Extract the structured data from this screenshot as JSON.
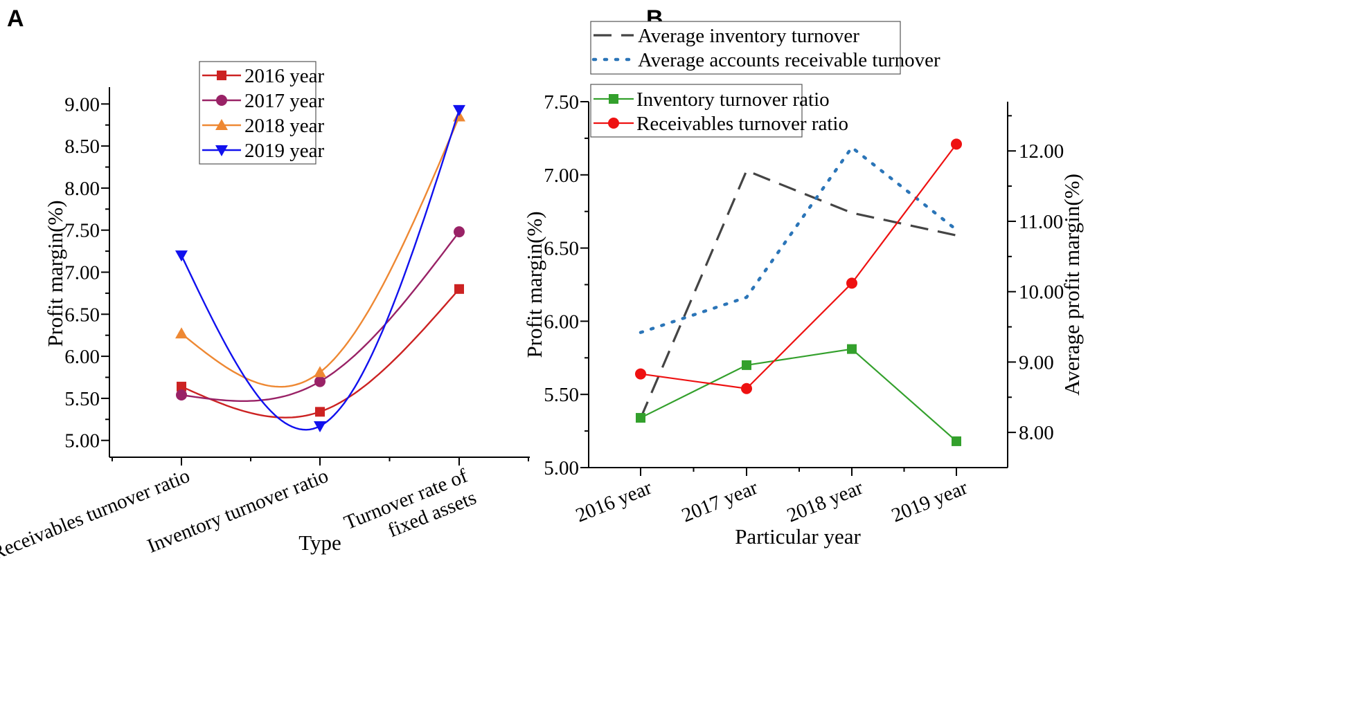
{
  "figure": {
    "panel_a_letter": "A",
    "panel_b_letter": "B"
  },
  "chart_data": [
    {
      "panel": "A",
      "type": "line",
      "smooth": true,
      "xlabel": "Type",
      "ylabel": "Profit margin(%)",
      "categories": [
        "Receivables turnover ratio",
        "Inventory turnover ratio",
        "Turnover rate of fixed assets"
      ],
      "category_lines": [
        [
          "Receivables turnover ratio"
        ],
        [
          "Inventory turnover ratio"
        ],
        [
          "Turnover rate of",
          "fixed assets"
        ]
      ],
      "ylim": [
        4.8,
        9.2
      ],
      "yticks": [
        5.0,
        5.5,
        6.0,
        6.5,
        7.0,
        7.5,
        8.0,
        8.5,
        9.0
      ],
      "ytick_labels": [
        "5.00",
        "5.50",
        "6.00",
        "6.50",
        "7.00",
        "7.50",
        "8.00",
        "8.50",
        "9.00"
      ],
      "legend_position": "top-center",
      "series": [
        {
          "name": "2016 year",
          "color": "#cc2222",
          "marker": "square",
          "values": [
            5.64,
            5.34,
            6.8
          ]
        },
        {
          "name": "2017 year",
          "color": "#992266",
          "marker": "circle",
          "values": [
            5.54,
            5.7,
            7.48
          ]
        },
        {
          "name": "2018 year",
          "color": "#ee8833",
          "marker": "triangle-up",
          "values": [
            6.27,
            5.81,
            8.85
          ]
        },
        {
          "name": "2019 year",
          "color": "#1111ee",
          "marker": "triangle-down",
          "values": [
            7.2,
            5.17,
            8.93
          ]
        }
      ]
    },
    {
      "panel": "B",
      "type": "line",
      "xlabel": "Particular year",
      "ylabel": "Profit margin(%)",
      "ylabel_right": "Average profit margin(%)",
      "categories": [
        "2016 year",
        "2017 year",
        "2018 year",
        "2019 year"
      ],
      "ylim": [
        5.0,
        7.5
      ],
      "yticks": [
        5.0,
        5.5,
        6.0,
        6.5,
        7.0,
        7.5
      ],
      "ytick_labels": [
        "5.00",
        "5.50",
        "6.00",
        "6.50",
        "7.00",
        "7.50"
      ],
      "y2lim": [
        7.5,
        12.7
      ],
      "y2ticks": [
        8.0,
        9.0,
        10.0,
        11.0,
        12.0
      ],
      "y2tick_labels": [
        "8.00",
        "9.00",
        "10.00",
        "11.00",
        "12.00"
      ],
      "legend_position": "top-left",
      "series": [
        {
          "name": "Inventory turnover ratio",
          "axis": "left",
          "color": "#33a02c",
          "marker": "square",
          "style": "solid",
          "values": [
            5.34,
            5.7,
            5.81,
            5.18
          ]
        },
        {
          "name": "Receivables turnover ratio",
          "axis": "left",
          "color": "#ee1111",
          "marker": "circle",
          "style": "solid",
          "values": [
            5.64,
            5.54,
            6.26,
            7.21
          ]
        },
        {
          "name": "Average inventory turnover",
          "axis": "right",
          "color": "#444444",
          "marker": "none",
          "style": "dashed",
          "values": [
            8.2,
            11.72,
            11.12,
            10.8
          ]
        },
        {
          "name": "Average accounts receivable turnover",
          "axis": "right",
          "color": "#2b75b8",
          "marker": "none",
          "style": "dotted",
          "values": [
            9.42,
            9.92,
            12.05,
            10.88
          ]
        }
      ]
    }
  ]
}
